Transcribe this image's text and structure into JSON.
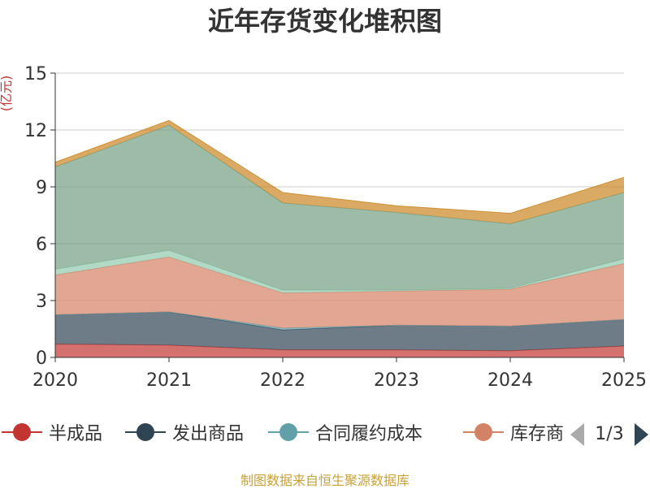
{
  "chart_data": {
    "type": "area",
    "title": "近年存货变化堆积图",
    "ylabel": "(亿元)",
    "xlabel": "",
    "x": [
      "2020",
      "2021",
      "2022",
      "2023",
      "2024",
      "2025"
    ],
    "ylim": [
      0,
      15
    ],
    "yticks": [
      0,
      3,
      6,
      9,
      12,
      15
    ],
    "grid": true,
    "stacked": true,
    "legend_position": "bottom",
    "series": [
      {
        "name": "半成品",
        "color": "#c23531",
        "values": [
          0.7,
          0.65,
          0.4,
          0.4,
          0.35,
          0.6
        ]
      },
      {
        "name": "发出商品",
        "color": "#2f4554",
        "values": [
          1.55,
          1.75,
          1.05,
          1.3,
          1.3,
          1.4
        ]
      },
      {
        "name": "合同履约成本",
        "color": "#61a0a8",
        "values": [
          0.0,
          0.0,
          0.1,
          0.0,
          0.0,
          0.0
        ]
      },
      {
        "name": "库存商品",
        "color": "#d48265",
        "values": [
          2.1,
          2.9,
          1.85,
          1.8,
          1.95,
          2.95
        ]
      },
      {
        "name": "",
        "color": "#91c7ae",
        "values": [
          0.3,
          0.35,
          0.15,
          0.05,
          0.05,
          0.25
        ]
      },
      {
        "name": "",
        "color": "#749f83",
        "values": [
          5.4,
          6.6,
          4.6,
          4.1,
          3.4,
          3.5
        ]
      },
      {
        "name": "",
        "color": "#ca8622",
        "values": [
          0.25,
          0.25,
          0.55,
          0.35,
          0.55,
          0.8
        ]
      }
    ]
  },
  "legend": {
    "items": [
      {
        "label": "半成品",
        "color": "#c23531",
        "icon": "circle-line-icon"
      },
      {
        "label": "发出商品",
        "color": "#2f4554",
        "icon": "circle-line-icon"
      },
      {
        "label": "合同履约成本",
        "color": "#61a0a8",
        "icon": "circle-line-icon"
      },
      {
        "label": "库存商",
        "color": "#d48265",
        "icon": "circle-line-icon"
      }
    ],
    "page_indicator": "1/3",
    "prev_icon": "triangle-left-icon",
    "next_icon": "triangle-right-icon"
  },
  "footer": {
    "source": "制图数据来自恒生聚源数据库"
  }
}
